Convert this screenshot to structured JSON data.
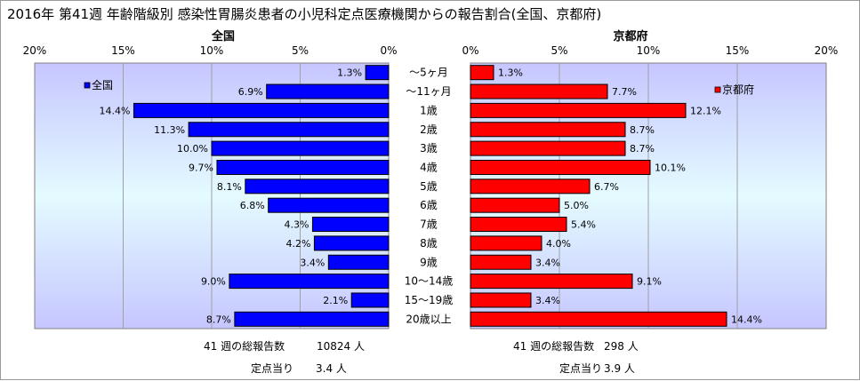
{
  "title": "2016年 第41週 年齢階級別 感染性胃腸炎患者の小児科定点医療機関からの報告割合(全国、京都府)",
  "chart_data": {
    "type": "bar",
    "orientation": "horizontal",
    "categories": [
      "～5ヶ月",
      "～11ヶ月",
      "1歳",
      "2歳",
      "3歳",
      "4歳",
      "5歳",
      "6歳",
      "7歳",
      "8歳",
      "9歳",
      "10～14歳",
      "15～19歳",
      "20歳以上"
    ],
    "xlim": [
      0,
      20
    ],
    "ticks": [
      "0%",
      "5%",
      "10%",
      "15%",
      "20%"
    ],
    "grid": true,
    "panels": [
      {
        "title": "全国",
        "legend": "全国",
        "color": "#0000ff",
        "values": [
          1.3,
          6.9,
          14.4,
          11.3,
          10.0,
          9.7,
          8.1,
          6.8,
          4.3,
          4.2,
          3.4,
          9.0,
          2.1,
          8.7
        ],
        "labels": [
          "1.3%",
          "6.9%",
          "14.4%",
          "11.3%",
          "10.0%",
          "9.7%",
          "8.1%",
          "6.8%",
          "4.3%",
          "4.2%",
          "3.4%",
          "9.0%",
          "2.1%",
          "8.7%"
        ],
        "footer": {
          "total_label": "41 週の総報告数",
          "total_value": "10824 人",
          "per_label": "定点当り",
          "per_value": "3.4 人"
        }
      },
      {
        "title": "京都府",
        "legend": "京都府",
        "color": "#ff0000",
        "values": [
          1.3,
          7.7,
          12.1,
          8.7,
          8.7,
          10.1,
          6.7,
          5.0,
          5.4,
          4.0,
          3.4,
          9.1,
          3.4,
          14.4
        ],
        "labels": [
          "1.3%",
          "7.7%",
          "12.1%",
          "8.7%",
          "8.7%",
          "10.1%",
          "6.7%",
          "5.0%",
          "5.4%",
          "4.0%",
          "3.4%",
          "9.1%",
          "3.4%",
          "14.4%"
        ],
        "footer": {
          "total_label": "41 週の総報告数",
          "total_value": "298 人",
          "per_label": "定点当り",
          "per_value": "3.9 人"
        }
      }
    ]
  }
}
